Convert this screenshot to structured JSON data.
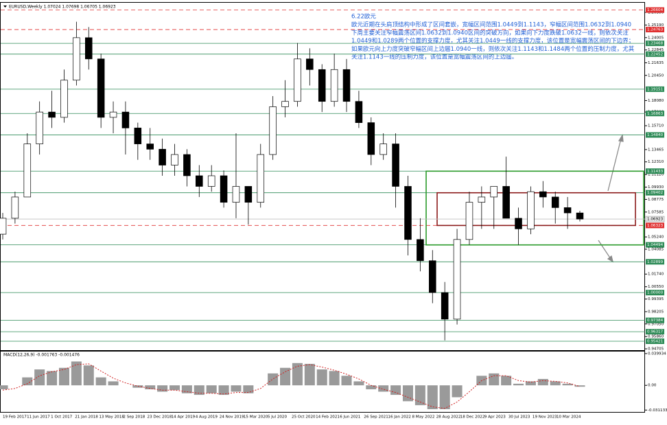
{
  "header": {
    "symbol_info": "EURUSD,Weekly  1.07024 1.07698 1.06705 1.06923"
  },
  "annotation": {
    "title": "6.22欧元",
    "lines": [
      "欧元近期在头肩顶结构中形成了区间套嵌，宽幅区间范围1.0449到1.1143，窄幅区间范围1.0632到1.0940",
      "下周主要关注窄幅震荡区间1.0632到1.0940区间的突破方向，如果向下力度跌破1.0632一线，则依次关注",
      "1.0449和1.0289两个位置的支撑力度，尤其关注1.0449一线的支撑力度，该位置是宽幅震荡区间的下边界；",
      "如果欧元向上力度突破窄幅区间上边届1.0940一线，则依次关注1.1143和1.1484两个位置的压制力度，尤其",
      "关注1.1143一线的压制力度，该位置是宽幅震荡区间的上边届。"
    ]
  },
  "chart_data": {
    "type": "candlestick",
    "ylim": [
      0.9458,
      1.2703
    ],
    "yticks": [
      {
        "value": 1.2638,
        "label": "1.26380"
      },
      {
        "value": 1.2519,
        "label": "1.25190"
      },
      {
        "value": 1.24005,
        "label": "1.24005"
      },
      {
        "value": 1.22845,
        "label": "1.22845"
      },
      {
        "value": 1.21635,
        "label": "1.21635"
      },
      {
        "value": 1.2045,
        "label": "1.20450"
      },
      {
        "value": 1.1808,
        "label": "1.18080"
      },
      {
        "value": 1.17,
        "label": "1.17000"
      },
      {
        "value": 1.1571,
        "label": "1.15710"
      },
      {
        "value": 1.13465,
        "label": "1.13465"
      },
      {
        "value": 1.1231,
        "label": "1.12310"
      },
      {
        "value": 1.1112,
        "label": "1.11120"
      },
      {
        "value": 1.0993,
        "label": "1.09930"
      },
      {
        "value": 1.08775,
        "label": "1.08775"
      },
      {
        "value": 1.07585,
        "label": "1.07585"
      },
      {
        "value": 1.0524,
        "label": "1.05240"
      },
      {
        "value": 1.04085,
        "label": "1.04085"
      },
      {
        "value": 1.0174,
        "label": "1.01740"
      },
      {
        "value": 1.0055,
        "label": "1.00550"
      },
      {
        "value": 0.99395,
        "label": "0.99395"
      },
      {
        "value": 0.98205,
        "label": "0.98205"
      },
      {
        "value": 0.9705,
        "label": "0.97050"
      },
      {
        "value": 0.9586,
        "label": "0.95860"
      },
      {
        "value": 0.94705,
        "label": "0.94705"
      }
    ],
    "candles": {
      "open": [
        1.055,
        1.07,
        1.09,
        1.14,
        1.17,
        1.165,
        1.2,
        1.24,
        1.22,
        1.165,
        1.17,
        1.155,
        1.14,
        1.135,
        1.12,
        1.13,
        1.11,
        1.1,
        1.11,
        1.085,
        1.1,
        1.085,
        1.13,
        1.175,
        1.18,
        1.22,
        1.21,
        1.18,
        1.21,
        1.18,
        1.16,
        1.13,
        1.14,
        1.1,
        1.05,
        1.03,
        1.0,
        0.975,
        1.05,
        1.085,
        1.09,
        1.1,
        1.07,
        1.06,
        1.095,
        1.09,
        1.08,
        1.075
      ],
      "high": [
        1.075,
        1.095,
        1.15,
        1.18,
        1.19,
        1.21,
        1.255,
        1.25,
        1.225,
        1.18,
        1.18,
        1.16,
        1.155,
        1.145,
        1.14,
        1.135,
        1.12,
        1.12,
        1.115,
        1.15,
        1.1,
        1.14,
        1.185,
        1.2,
        1.235,
        1.23,
        1.215,
        1.225,
        1.22,
        1.19,
        1.165,
        1.15,
        1.15,
        1.11,
        1.07,
        1.04,
        1.01,
        1.06,
        1.095,
        1.1,
        1.1,
        1.128,
        1.08,
        1.1,
        1.105,
        1.095,
        1.09,
        1.077
      ],
      "low": [
        1.05,
        1.065,
        1.09,
        1.13,
        1.155,
        1.16,
        1.195,
        1.21,
        1.155,
        1.15,
        1.13,
        1.125,
        1.125,
        1.11,
        1.11,
        1.1,
        1.09,
        1.095,
        1.08,
        1.07,
        1.064,
        1.08,
        1.125,
        1.165,
        1.175,
        1.195,
        1.17,
        1.175,
        1.17,
        1.155,
        1.12,
        1.125,
        1.08,
        1.035,
        1.02,
        0.99,
        0.955,
        0.97,
        1.045,
        1.06,
        1.06,
        1.09,
        1.045,
        1.055,
        1.08,
        1.065,
        1.06,
        1.067
      ],
      "close": [
        1.07,
        1.09,
        1.14,
        1.17,
        1.165,
        1.2,
        1.24,
        1.22,
        1.165,
        1.17,
        1.155,
        1.14,
        1.135,
        1.12,
        1.13,
        1.11,
        1.1,
        1.11,
        1.085,
        1.1,
        1.085,
        1.13,
        1.175,
        1.18,
        1.22,
        1.21,
        1.18,
        1.21,
        1.18,
        1.16,
        1.13,
        1.14,
        1.1,
        1.05,
        1.03,
        1.0,
        0.975,
        1.05,
        1.085,
        1.09,
        1.1,
        1.07,
        1.06,
        1.095,
        1.09,
        1.08,
        1.075,
        1.06923
      ]
    },
    "levels": [
      {
        "value": 1.26604,
        "label": "1.26604",
        "color": "#e03030",
        "dashed": true
      },
      {
        "value": 1.24763,
        "label": "1.24763",
        "color": "#e03030",
        "dashed": true
      },
      {
        "value": 1.23468,
        "label": "1.23468",
        "color": "#2e8b57",
        "dashed": false
      },
      {
        "value": 1.22452,
        "label": "1.22452",
        "color": "#2e8b57",
        "dashed": false
      },
      {
        "value": 1.19151,
        "label": "1.19151",
        "color": "#2e8b57",
        "dashed": false
      },
      {
        "value": 1.16863,
        "label": "1.16863",
        "color": "#2e8b57",
        "dashed": false
      },
      {
        "value": 1.1484,
        "label": "1.14840",
        "color": "#2e8b57",
        "dashed": false
      },
      {
        "value": 1.11433,
        "label": "1.11433",
        "color": "#2e8b57",
        "dashed": false
      },
      {
        "value": 1.09402,
        "label": "1.09402",
        "color": "#2e8b57",
        "dashed": false
      },
      {
        "value": 1.06323,
        "label": "1.06323",
        "color": "#e03030",
        "dashed": true
      },
      {
        "value": 1.04494,
        "label": "1.04494",
        "color": "#2e8b57",
        "dashed": false
      },
      {
        "value": 1.02899,
        "label": "1.02899",
        "color": "#2e8b57",
        "dashed": false
      },
      {
        "value": 1.0,
        "label": "1.00000",
        "color": "#2e8b57",
        "dashed": false
      },
      {
        "value": 0.97384,
        "label": "0.97384",
        "color": "#2e8b57",
        "dashed": false
      },
      {
        "value": 0.96317,
        "label": "0.96317",
        "color": "#2e8b57",
        "dashed": false
      },
      {
        "value": 0.95421,
        "label": "0.95421",
        "color": "#2e8b57",
        "dashed": false
      }
    ],
    "current_price": {
      "value": 1.06923,
      "label": "1.06923"
    },
    "boxes": [
      {
        "top": 1.1143,
        "bottom": 1.0449,
        "color": "#2a9a2a"
      },
      {
        "top": 1.094,
        "bottom": 1.0632,
        "color": "#8b1a1a"
      }
    ],
    "x_labels": [
      "19 Feb 2017",
      "11 Jun 2017",
      "1 Oct 2017",
      "21 Jan 2018",
      "13 May 2018",
      "2 Sep 2018",
      "23 Dec 2018",
      "14 Apr 2019",
      "4 Aug 2019",
      "24 Nov 2019",
      "15 Mar 2020",
      "5 Jul 2020",
      "25 Oct 2020",
      "14 Feb 2021",
      "6 Jun 2021",
      "26 Sep 2021",
      "16 Jan 2022",
      "8 May 2022",
      "28 Aug 2022",
      "18 Dec 2022",
      "9 Apr 2023",
      "30 Jul 2023",
      "19 Nov 2023",
      "10 Mar 2024"
    ],
    "macd": {
      "title": "MACD(12,26,9) -0.001763 -0.001476",
      "ylim": [
        -0.0335,
        0.0425
      ],
      "yticks": [
        {
          "value": 0.039934,
          "label": "0.039934"
        },
        {
          "value": 0,
          "label": "0.00"
        },
        {
          "value": -0.031133,
          "label": "-0.031133"
        }
      ],
      "histogram": [
        -0.005,
        0.0,
        0.01,
        0.02,
        0.018,
        0.022,
        0.03,
        0.025,
        0.01,
        0.005,
        0.0,
        -0.003,
        -0.005,
        -0.008,
        -0.006,
        -0.01,
        -0.012,
        -0.01,
        -0.012,
        -0.008,
        -0.01,
        0.0,
        0.015,
        0.022,
        0.028,
        0.027,
        0.02,
        0.018,
        0.012,
        0.005,
        -0.005,
        -0.008,
        -0.012,
        -0.02,
        -0.025,
        -0.03,
        -0.03,
        -0.015,
        0.0,
        0.012,
        0.015,
        0.012,
        0.002,
        0.005,
        0.008,
        0.005,
        0.002,
        -0.001763
      ],
      "signal": [
        -0.006,
        -0.004,
        0.002,
        0.012,
        0.017,
        0.02,
        0.026,
        0.027,
        0.018,
        0.009,
        0.003,
        -0.001,
        -0.004,
        -0.006,
        -0.006,
        -0.008,
        -0.01,
        -0.01,
        -0.011,
        -0.009,
        -0.009,
        -0.004,
        0.008,
        0.017,
        0.024,
        0.026,
        0.023,
        0.019,
        0.014,
        0.008,
        0.0,
        -0.005,
        -0.009,
        -0.015,
        -0.021,
        -0.027,
        -0.029,
        -0.021,
        -0.008,
        0.006,
        0.012,
        0.012,
        0.006,
        0.004,
        0.006,
        0.005,
        0.003,
        -0.001476
      ],
      "histogram_color": "#9a9a9a",
      "signal_color": "#d02020"
    }
  }
}
